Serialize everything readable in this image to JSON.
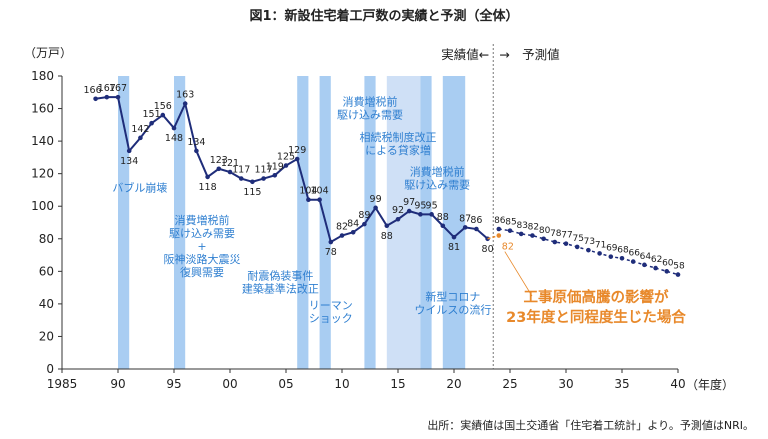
{
  "title": "図1：新設住宅着工戸数の実績と予測（全体）",
  "source": "出所：実績値は国土交通省「住宅着工統計」より。予測値はNRI。",
  "colors": {
    "actual": "#1f2d7a",
    "forecast": "#1f2d7a",
    "band": "#a9cdf2",
    "band_light": "#cfe0f6",
    "orange": "#e8892b",
    "annotation": "#2f7fd0",
    "axis": "#333333"
  },
  "chart_data": {
    "type": "line",
    "ylabel": "（万戸）",
    "xlabel": "（年度）",
    "xlim": [
      1985,
      2040
    ],
    "ylim": [
      0,
      180
    ],
    "x_ticks": [
      1985,
      1990,
      1995,
      2000,
      2005,
      2010,
      2015,
      2020,
      2025,
      2030,
      2035,
      2040
    ],
    "x_tick_labels": [
      "1985",
      "90",
      "95",
      "00",
      "05",
      "10",
      "15",
      "20",
      "25",
      "30",
      "35",
      "40"
    ],
    "y_ticks": [
      0,
      20,
      40,
      60,
      80,
      100,
      120,
      140,
      160,
      180
    ],
    "actual": {
      "x": [
        1988,
        1989,
        1990,
        1991,
        1992,
        1993,
        1994,
        1995,
        1996,
        1997,
        1998,
        1999,
        2000,
        2001,
        2002,
        2003,
        2004,
        2005,
        2006,
        2007,
        2008,
        2009,
        2010,
        2011,
        2012,
        2013,
        2014,
        2015,
        2016,
        2017,
        2018,
        2019,
        2020,
        2021,
        2022,
        2023
      ],
      "y": [
        166,
        167,
        167,
        134,
        142,
        151,
        156,
        148,
        163,
        134,
        118,
        123,
        121,
        117,
        115,
        117,
        119,
        125,
        129,
        104,
        104,
        78,
        82,
        84,
        89,
        99,
        88,
        92,
        97,
        95,
        95,
        88,
        81,
        87,
        86,
        80
      ]
    },
    "forecast": {
      "x": [
        2024,
        2025,
        2026,
        2027,
        2028,
        2029,
        2030,
        2031,
        2032,
        2033,
        2034,
        2035,
        2036,
        2037,
        2038,
        2039,
        2040
      ],
      "y": [
        86,
        85,
        83,
        82,
        80,
        78,
        77,
        75,
        73,
        71,
        69,
        68,
        66,
        64,
        62,
        60,
        58
      ]
    },
    "scenario": {
      "x": [
        2023,
        2024
      ],
      "y": [
        80,
        82
      ]
    },
    "divider_x": 2023.5,
    "divider_labels": {
      "left": "実績値←",
      "right": "→　予測値"
    },
    "scenario_label": [
      "工事原価高騰の影響が",
      "23年度と同程度生じた場合"
    ],
    "bands": [
      {
        "x0": 1990,
        "x1": 1991,
        "tone": "dark"
      },
      {
        "x0": 1995,
        "x1": 1996,
        "tone": "dark"
      },
      {
        "x0": 2006,
        "x1": 2007,
        "tone": "dark"
      },
      {
        "x0": 2008,
        "x1": 2009,
        "tone": "dark"
      },
      {
        "x0": 2012,
        "x1": 2013,
        "tone": "dark"
      },
      {
        "x0": 2014,
        "x1": 2017,
        "tone": "light"
      },
      {
        "x0": 2017,
        "x1": 2018,
        "tone": "dark"
      },
      {
        "x0": 2019,
        "x1": 2021,
        "tone": "dark"
      }
    ],
    "annotations": [
      {
        "lines": [
          "バブル崩壊"
        ],
        "x": 1989.5,
        "y": 109,
        "anchor": "start"
      },
      {
        "lines": [
          "消費増税前",
          "駆け込み需要",
          "+",
          "阪神淡路大震災",
          "復興需要"
        ],
        "x": 1997.5,
        "y": 89,
        "anchor": "middle"
      },
      {
        "lines": [
          "耐震偽装事件",
          "建築基準法改正"
        ],
        "x": 2004.5,
        "y": 55,
        "anchor": "middle"
      },
      {
        "lines": [
          "リーマン",
          "ショック"
        ],
        "x": 2009,
        "y": 37,
        "anchor": "middle"
      },
      {
        "lines": [
          "消費増税前",
          "駆け込み需要"
        ],
        "x": 2012.5,
        "y": 162,
        "anchor": "middle"
      },
      {
        "lines": [
          "相続税制度改正",
          "による貸家増"
        ],
        "x": 2015,
        "y": 140,
        "anchor": "middle"
      },
      {
        "lines": [
          "消費増税前",
          "駆け込み需要"
        ],
        "x": 2018.5,
        "y": 119,
        "anchor": "middle"
      },
      {
        "lines": [
          "新型コロナ",
          "ウイルスの流行"
        ],
        "x": 2019.9,
        "y": 42,
        "anchor": "middle"
      }
    ]
  }
}
